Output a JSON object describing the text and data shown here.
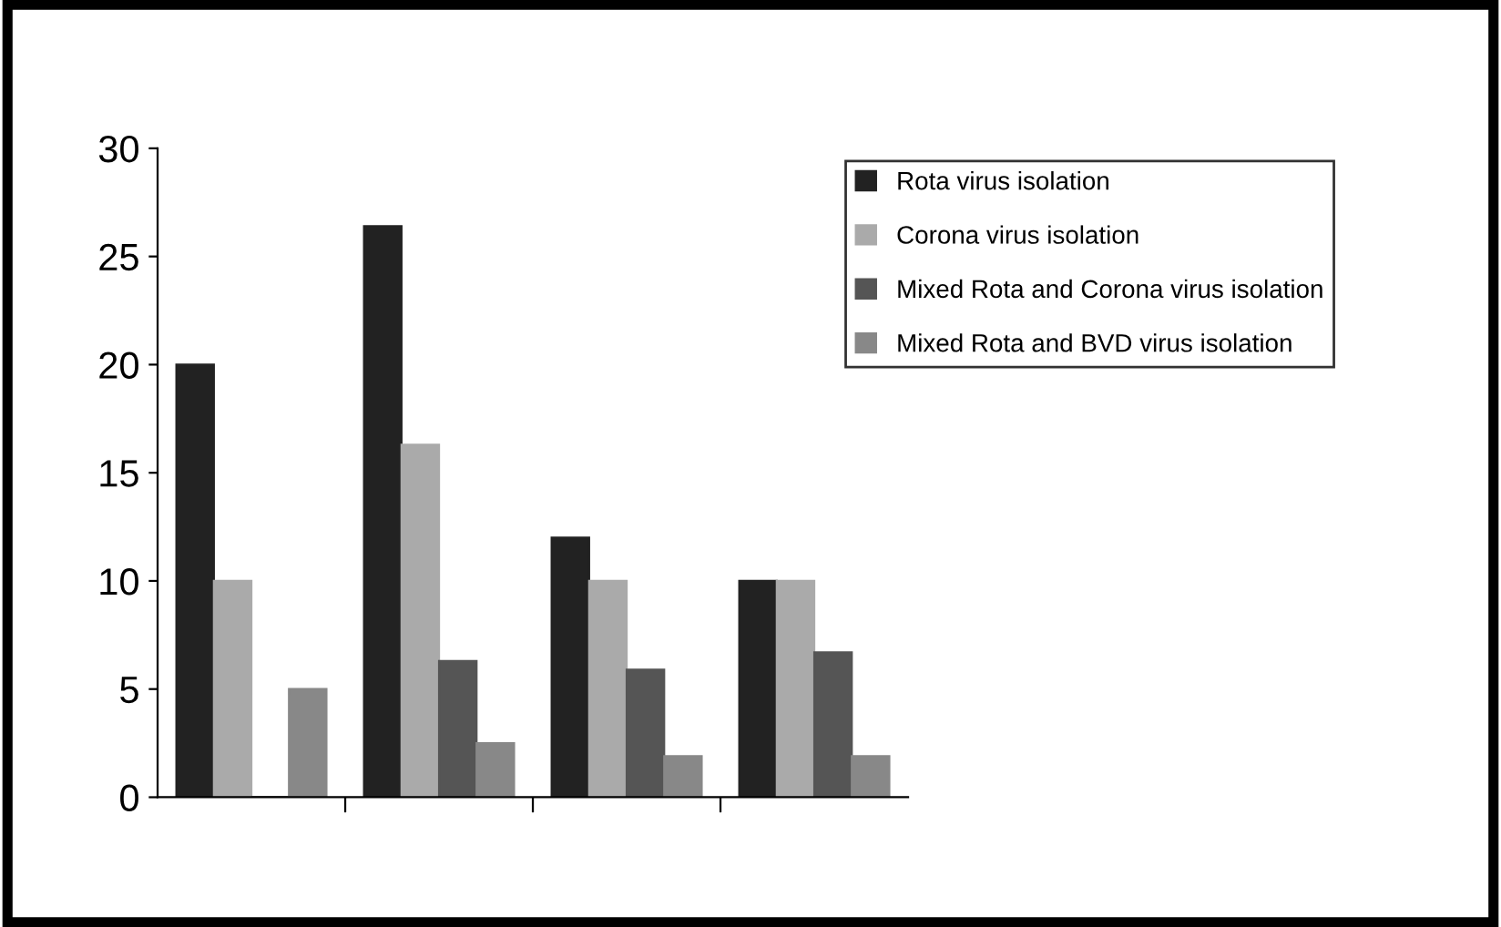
{
  "chart_data": {
    "type": "bar",
    "categories": [
      null,
      null,
      null,
      null
    ],
    "series": [
      {
        "name": "Rota virus isolation",
        "color": "#222222",
        "values": [
          20,
          26.4,
          12,
          10
        ]
      },
      {
        "name": "Corona virus isolation",
        "color": "#aaaaaa",
        "values": [
          10,
          16.3,
          10,
          10
        ]
      },
      {
        "name": "Mixed Rota and Corona virus isolation",
        "color": "#555555",
        "values": [
          0,
          6.3,
          5.9,
          6.7
        ]
      },
      {
        "name": "Mixed Rota and BVD virus isolation",
        "color": "#888888",
        "values": [
          5,
          2.5,
          1.9,
          1.9
        ]
      }
    ],
    "ylim": [
      0,
      30
    ],
    "yticks": [
      0,
      5,
      10,
      15,
      20,
      25,
      30
    ],
    "grid": false,
    "legend": "top right"
  }
}
